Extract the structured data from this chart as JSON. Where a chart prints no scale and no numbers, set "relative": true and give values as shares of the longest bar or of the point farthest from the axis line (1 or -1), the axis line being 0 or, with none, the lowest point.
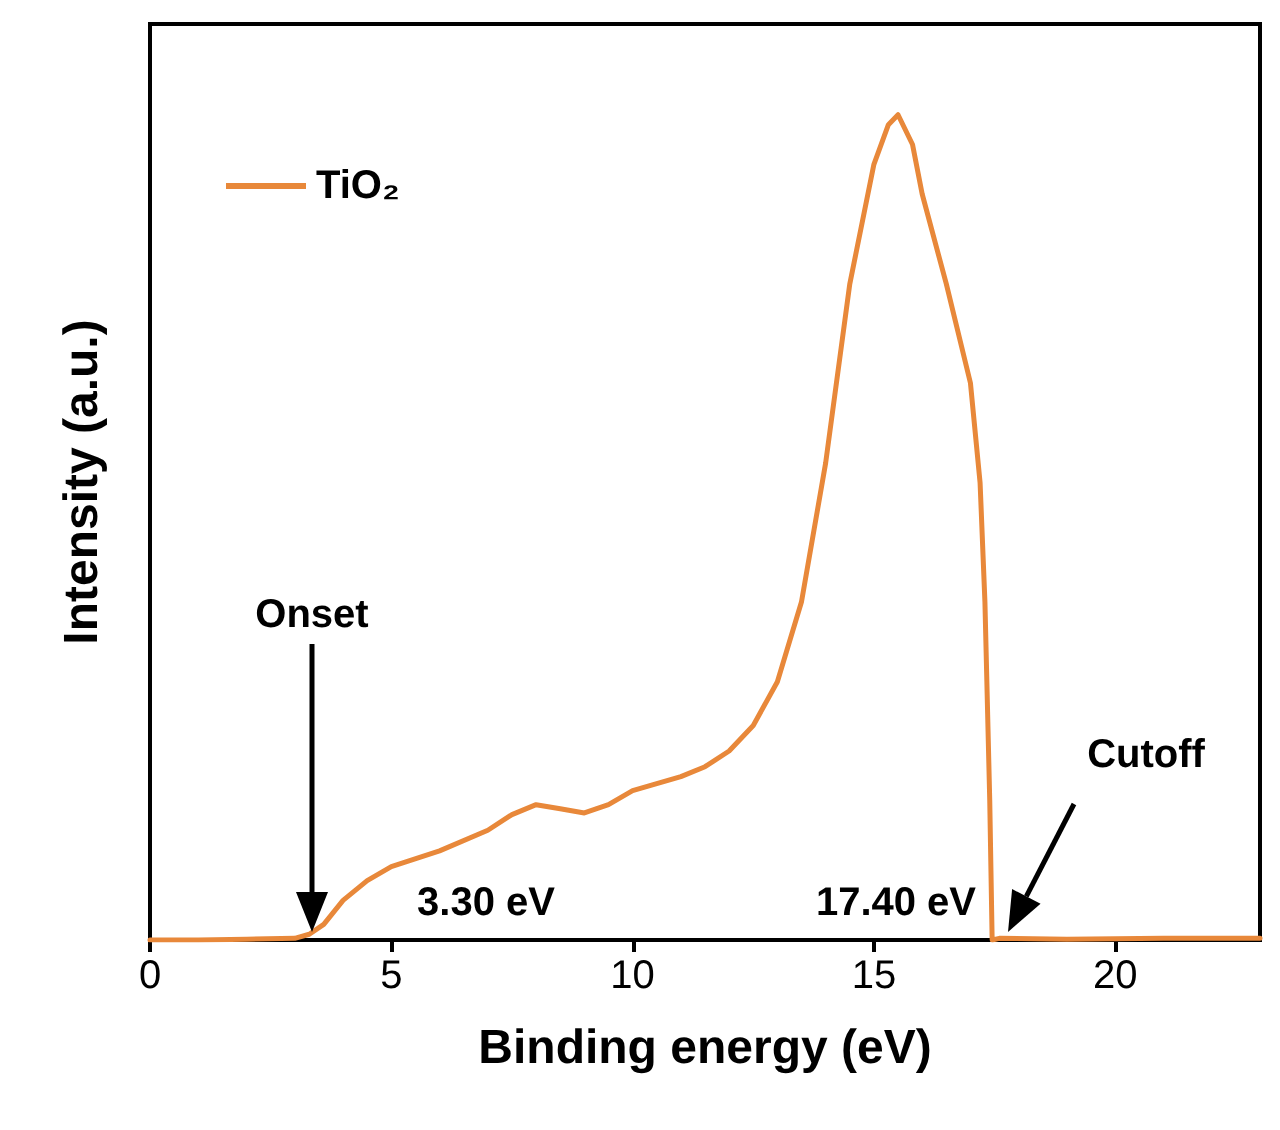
{
  "chart_data": {
    "type": "line",
    "xlabel": "Binding energy (eV)",
    "ylabel": "Intensity (a.u.)",
    "relative": true,
    "xlim": [
      0,
      23
    ],
    "xticks": [
      0,
      5,
      10,
      15,
      20
    ],
    "tick_labels": "x",
    "legend": "top left",
    "grid": false,
    "marker": "none",
    "line_style": "solid",
    "series": [
      {
        "name": "TiO₂",
        "color": "#e8883a",
        "x": [
          0,
          1,
          2,
          3,
          3.3,
          3.6,
          4,
          4.5,
          5,
          6,
          7,
          7.5,
          8,
          8.5,
          9,
          9.5,
          10,
          11,
          11.5,
          12,
          12.5,
          13,
          13.5,
          14,
          14.5,
          15,
          15.3,
          15.5,
          15.8,
          16,
          16.5,
          17,
          17.2,
          17.3,
          17.4,
          17.45,
          17.6,
          19,
          21,
          23
        ],
        "values": [
          0,
          0,
          0.001,
          0.002,
          0.007,
          0.019,
          0.048,
          0.072,
          0.089,
          0.108,
          0.133,
          0.152,
          0.164,
          0.159,
          0.154,
          0.164,
          0.181,
          0.198,
          0.21,
          0.229,
          0.26,
          0.313,
          0.41,
          0.578,
          0.795,
          0.94,
          0.988,
          1,
          0.964,
          0.904,
          0.795,
          0.675,
          0.554,
          0.41,
          0.169,
          0,
          0.002,
          0.001,
          0.002,
          0.002
        ]
      }
    ],
    "annotations": [
      "Onset",
      "3.30 eV",
      "17.40 eV",
      "Cutoff"
    ]
  }
}
